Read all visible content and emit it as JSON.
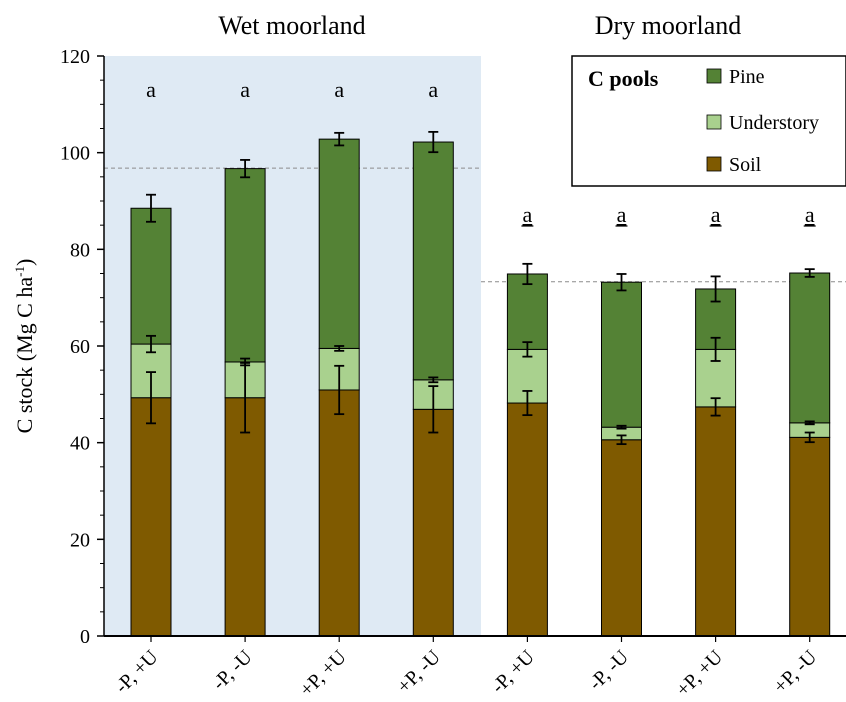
{
  "chart_data": {
    "type": "bar",
    "stacked": true,
    "panels": [
      {
        "title": "Wet moorland",
        "shaded": true,
        "dashed_reference": 96.8
      },
      {
        "title": "Dry moorland",
        "shaded": false,
        "dashed_reference": 73.3
      }
    ],
    "categories": [
      "-P, +U",
      "-P, -U",
      "+P, +U",
      "+P, -U",
      "-P, +U",
      "-P, -U",
      "+P, +U",
      "+P, -U"
    ],
    "series": [
      {
        "name": "Soil",
        "color": "#7f5a00",
        "values": [
          49.3,
          49.3,
          50.9,
          46.9,
          48.2,
          40.6,
          47.4,
          41.1
        ],
        "errors": [
          5.3,
          7.2,
          5.0,
          4.8,
          2.5,
          0.9,
          1.8,
          1.0
        ]
      },
      {
        "name": "Understory",
        "color": "#a9d18e",
        "values": [
          11.1,
          7.4,
          8.6,
          6.1,
          11.1,
          2.6,
          11.9,
          3.0
        ],
        "errors": [
          1.7,
          0.7,
          0.5,
          0.5,
          1.5,
          0.3,
          2.4,
          0.3
        ]
      },
      {
        "name": "Pine",
        "color": "#548235",
        "values": [
          28.1,
          40.0,
          43.3,
          49.2,
          15.6,
          30.0,
          12.5,
          31.0
        ],
        "errors": [
          2.8,
          1.8,
          1.3,
          2.1,
          2.1,
          1.7,
          2.6,
          0.8
        ]
      }
    ],
    "group_letters": [
      "a",
      "a",
      "a",
      "a",
      "a",
      "a",
      "a",
      "a"
    ],
    "group_letters_underlined": [
      false,
      false,
      false,
      false,
      true,
      true,
      true,
      true
    ],
    "ylabel": "C stock (Mg C ha",
    "ylabel_sup": "-1",
    "ylabel_close": ")",
    "ylim": [
      0,
      120
    ],
    "yticks": [
      0,
      20,
      40,
      60,
      80,
      100,
      120
    ],
    "legend": {
      "title": "C pools",
      "entries": [
        "Pine",
        "Understory",
        "Soil"
      ],
      "position": "top-right"
    }
  }
}
